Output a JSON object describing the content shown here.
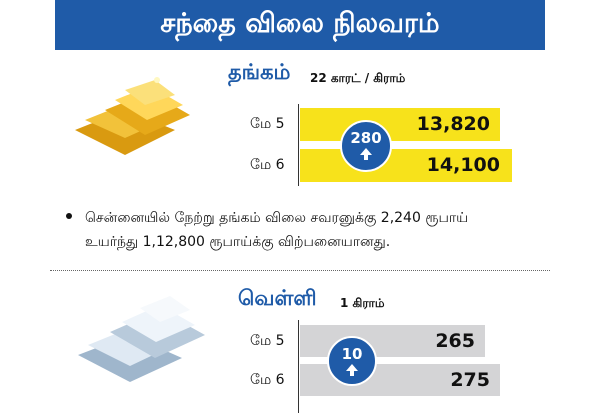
{
  "header": {
    "title": "சந்தை விலை நிலவரம்"
  },
  "gold": {
    "name": "தங்கம்",
    "unit": "22 காரட் / கிராம்",
    "rows": [
      {
        "date": "மே 5",
        "price": "13,820"
      },
      {
        "date": "மே 6",
        "price": "14,100"
      }
    ],
    "change": "280",
    "note": "சென்னையில் நேற்று தங்கம் விலை சவரனுக்கு 2,240 ரூபாய் உயர்ந்து 1,12,800 ரூபாய்க்கு விற்பனையானது."
  },
  "silver": {
    "name": "வெள்ளி",
    "unit": "1 கிராம்",
    "rows": [
      {
        "date": "மே 5",
        "price": "265"
      },
      {
        "date": "மே 6",
        "price": "275"
      }
    ],
    "change": "10"
  }
}
